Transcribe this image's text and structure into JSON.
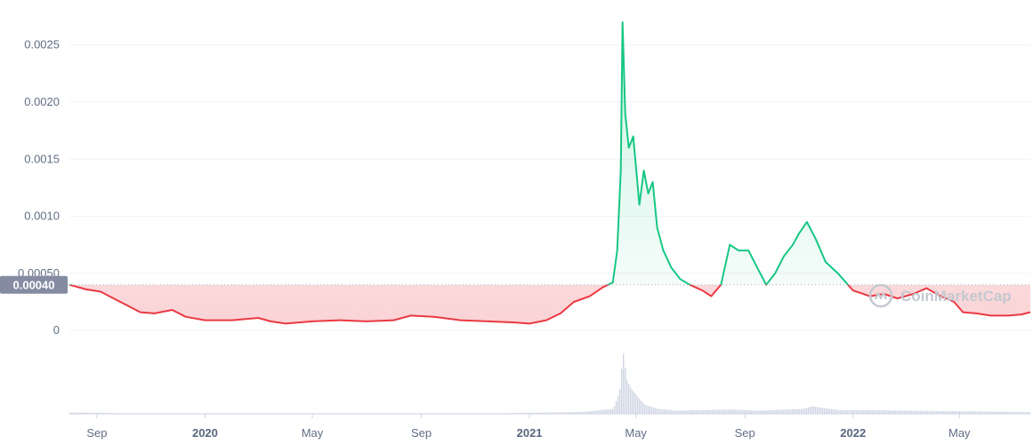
{
  "chart_data": {
    "type": "line",
    "watermark": "CoinMarketCap",
    "baseline_value": 0.0004,
    "baseline_label": "0.00040",
    "ylim": [
      -0.00045,
      0.0027
    ],
    "y_ticks": [
      {
        "value": 0.0025,
        "label": "0.0025"
      },
      {
        "value": 0.002,
        "label": "0.0020"
      },
      {
        "value": 0.0015,
        "label": "0.0015"
      },
      {
        "value": 0.001,
        "label": "0.0010"
      },
      {
        "value": 0.0005,
        "label": "0.00050"
      },
      {
        "value": 0,
        "label": "0"
      }
    ],
    "x_range": [
      "2019-08-01",
      "2022-07-20"
    ],
    "x_ticks": [
      {
        "date": "2019-09-01",
        "label": "Sep",
        "bold": false
      },
      {
        "date": "2020-01-01",
        "label": "2020",
        "bold": true
      },
      {
        "date": "2020-05-01",
        "label": "May",
        "bold": false
      },
      {
        "date": "2020-09-01",
        "label": "Sep",
        "bold": false
      },
      {
        "date": "2021-01-01",
        "label": "2021",
        "bold": true
      },
      {
        "date": "2021-05-01",
        "label": "May",
        "bold": false
      },
      {
        "date": "2021-09-01",
        "label": "Sep",
        "bold": false
      },
      {
        "date": "2022-01-01",
        "label": "2022",
        "bold": true
      },
      {
        "date": "2022-05-01",
        "label": "May",
        "bold": false
      }
    ],
    "colors": {
      "up": "#16c784",
      "down": "#ea3943",
      "volume": "#cfd6e4",
      "grid": "#eff2f5",
      "badge": "#858ca2"
    },
    "price_series": [
      [
        "2019-08-01",
        0.0004
      ],
      [
        "2019-08-20",
        0.00036
      ],
      [
        "2019-09-05",
        0.00034
      ],
      [
        "2019-09-20",
        0.00028
      ],
      [
        "2019-10-05",
        0.00022
      ],
      [
        "2019-10-20",
        0.00016
      ],
      [
        "2019-11-05",
        0.00015
      ],
      [
        "2019-11-25",
        0.00018
      ],
      [
        "2019-12-10",
        0.00012
      ],
      [
        "2020-01-01",
        9e-05
      ],
      [
        "2020-02-01",
        9e-05
      ],
      [
        "2020-03-01",
        0.00011
      ],
      [
        "2020-03-15",
        8e-05
      ],
      [
        "2020-04-01",
        6e-05
      ],
      [
        "2020-05-01",
        8e-05
      ],
      [
        "2020-06-01",
        9e-05
      ],
      [
        "2020-07-01",
        8e-05
      ],
      [
        "2020-08-01",
        9e-05
      ],
      [
        "2020-08-20",
        0.00013
      ],
      [
        "2020-09-15",
        0.00012
      ],
      [
        "2020-10-15",
        9e-05
      ],
      [
        "2020-11-15",
        8e-05
      ],
      [
        "2020-12-15",
        7e-05
      ],
      [
        "2021-01-01",
        6e-05
      ],
      [
        "2021-01-20",
        9e-05
      ],
      [
        "2021-02-05",
        0.00015
      ],
      [
        "2021-02-20",
        0.00025
      ],
      [
        "2021-03-10",
        0.0003
      ],
      [
        "2021-03-25",
        0.00038
      ],
      [
        "2021-04-05",
        0.00042
      ],
      [
        "2021-04-10",
        0.0007
      ],
      [
        "2021-04-14",
        0.0014
      ],
      [
        "2021-04-16",
        0.0027
      ],
      [
        "2021-04-19",
        0.0019
      ],
      [
        "2021-04-23",
        0.0016
      ],
      [
        "2021-04-28",
        0.0017
      ],
      [
        "2021-05-05",
        0.0011
      ],
      [
        "2021-05-10",
        0.0014
      ],
      [
        "2021-05-15",
        0.0012
      ],
      [
        "2021-05-20",
        0.0013
      ],
      [
        "2021-05-25",
        0.0009
      ],
      [
        "2021-06-01",
        0.0007
      ],
      [
        "2021-06-10",
        0.00055
      ],
      [
        "2021-06-20",
        0.00045
      ],
      [
        "2021-07-01",
        0.0004
      ],
      [
        "2021-07-15",
        0.00035
      ],
      [
        "2021-07-25",
        0.0003
      ],
      [
        "2021-08-05",
        0.0004
      ],
      [
        "2021-08-15",
        0.00075
      ],
      [
        "2021-08-25",
        0.0007
      ],
      [
        "2021-09-05",
        0.0007
      ],
      [
        "2021-09-15",
        0.00055
      ],
      [
        "2021-09-25",
        0.0004
      ],
      [
        "2021-10-05",
        0.0005
      ],
      [
        "2021-10-15",
        0.00065
      ],
      [
        "2021-10-25",
        0.00075
      ],
      [
        "2021-11-01",
        0.00085
      ],
      [
        "2021-11-10",
        0.00095
      ],
      [
        "2021-11-20",
        0.0008
      ],
      [
        "2021-12-01",
        0.0006
      ],
      [
        "2021-12-15",
        0.0005
      ],
      [
        "2022-01-01",
        0.00035
      ],
      [
        "2022-01-20",
        0.0003
      ],
      [
        "2022-02-05",
        0.00032
      ],
      [
        "2022-02-20",
        0.00028
      ],
      [
        "2022-03-10",
        0.00032
      ],
      [
        "2022-03-25",
        0.00037
      ],
      [
        "2022-04-10",
        0.0003
      ],
      [
        "2022-04-25",
        0.00025
      ],
      [
        "2022-05-05",
        0.00016
      ],
      [
        "2022-05-20",
        0.00015
      ],
      [
        "2022-06-05",
        0.00013
      ],
      [
        "2022-06-25",
        0.00013
      ],
      [
        "2022-07-10",
        0.00014
      ],
      [
        "2022-07-20",
        0.00016
      ]
    ],
    "volume_series": [
      [
        "2019-08-15",
        0.02
      ],
      [
        "2019-10-01",
        0.01
      ],
      [
        "2020-01-01",
        0.01
      ],
      [
        "2020-06-01",
        0.01
      ],
      [
        "2020-09-01",
        0.01
      ],
      [
        "2020-12-01",
        0.01
      ],
      [
        "2021-03-01",
        0.03
      ],
      [
        "2021-04-05",
        0.08
      ],
      [
        "2021-04-12",
        0.35
      ],
      [
        "2021-04-16",
        1.0
      ],
      [
        "2021-04-20",
        0.55
      ],
      [
        "2021-04-25",
        0.4
      ],
      [
        "2021-05-01",
        0.3
      ],
      [
        "2021-05-10",
        0.15
      ],
      [
        "2021-05-25",
        0.08
      ],
      [
        "2021-06-15",
        0.05
      ],
      [
        "2021-08-15",
        0.07
      ],
      [
        "2021-09-15",
        0.05
      ],
      [
        "2021-11-05",
        0.08
      ],
      [
        "2021-11-15",
        0.12
      ],
      [
        "2021-12-15",
        0.06
      ],
      [
        "2022-01-15",
        0.06
      ],
      [
        "2022-03-01",
        0.05
      ],
      [
        "2022-05-10",
        0.04
      ],
      [
        "2022-07-15",
        0.03
      ]
    ]
  }
}
